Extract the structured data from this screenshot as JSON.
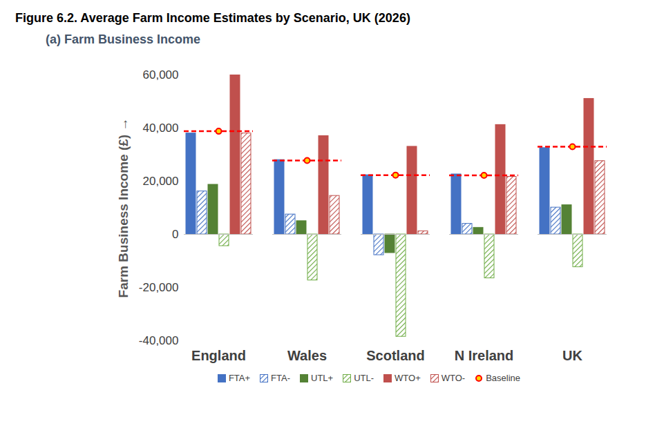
{
  "chart_data": {
    "type": "bar",
    "title": "Figure 6.2. Average Farm Income Estimates by Scenario, UK (2026)",
    "subtitle": "(a)  Farm Business Income",
    "y_label": "Farm Business Income (£)",
    "categories": [
      "England",
      "Wales",
      "Scotland",
      "N Ireland",
      "UK"
    ],
    "series": [
      {
        "name": "FTA+",
        "color": "#4472C4",
        "values": [
          38000,
          28000,
          22300,
          22600,
          32500
        ]
      },
      {
        "name": "FTA-",
        "color": "#4472C4",
        "values": [
          16200,
          7500,
          -7800,
          4000,
          10100
        ]
      },
      {
        "name": "UTL+",
        "color": "#548235",
        "values": [
          18700,
          5000,
          -7000,
          2500,
          11000
        ]
      },
      {
        "name": "UTL-",
        "color": "#70AD47",
        "values": [
          -4400,
          -17300,
          -38500,
          -16500,
          -12300
        ]
      },
      {
        "name": "WTO+",
        "color": "#C0504D",
        "values": [
          60000,
          37000,
          33000,
          41200,
          51000
        ]
      },
      {
        "name": "WTO-",
        "color": "#C0504D",
        "values": [
          38000,
          14500,
          1200,
          21700,
          27600
        ]
      },
      {
        "name": "Baseline",
        "type": "line",
        "color": "#FF0000",
        "marker": "dot",
        "line_style": "dashed",
        "values": [
          38800,
          27800,
          22300,
          22200,
          33000
        ]
      }
    ],
    "ylim": [
      -40000,
      60000
    ],
    "yticks": [
      {
        "value": -40000,
        "label": "-40,000"
      },
      {
        "value": -20000,
        "label": "-20,000"
      },
      0,
      {
        "value": 20000,
        "label": "20,000"
      },
      {
        "value": 40000,
        "label": "40,000"
      },
      {
        "value": 60000,
        "label": "60,000"
      }
    ],
    "grid": false,
    "legend": "bottom"
  }
}
